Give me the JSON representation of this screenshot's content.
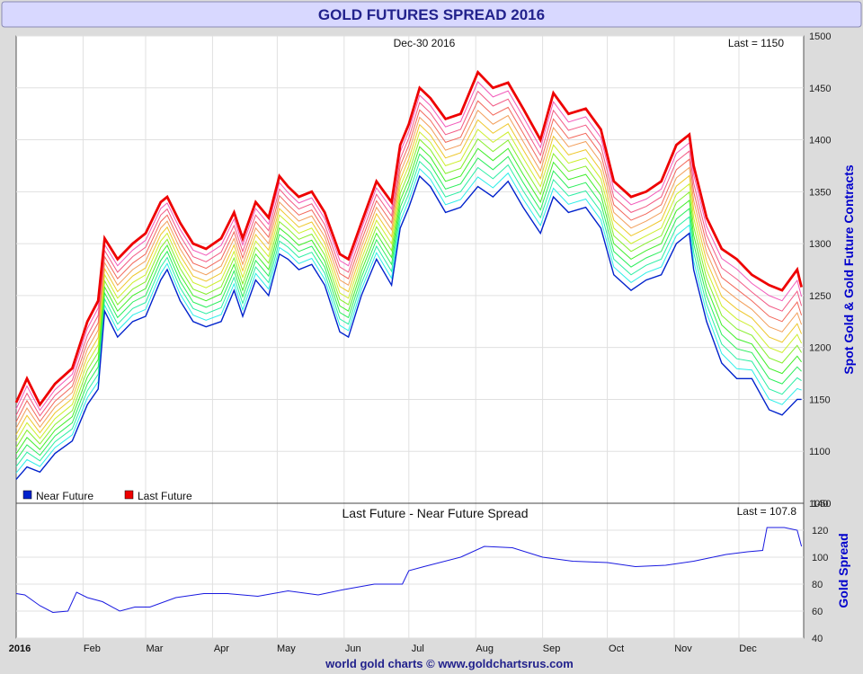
{
  "title": "GOLD FUTURES SPREAD 2016",
  "footer": "world gold charts © www.goldchartsrus.com",
  "colors": {
    "title_bg": "#d8d8ff",
    "title_text": "#22228c",
    "frame": "#8a8ab4",
    "axis_label": "#0000cc",
    "near": "#0022cc",
    "last": "#ee0000",
    "spread_line": "#1a1ae0",
    "grid": "#e0e0e0"
  },
  "chart_data": [
    {
      "type": "line",
      "date_label": "Dec-30  2016",
      "last_label": "Last = 1150",
      "ylabel": "Spot Gold & Gold Future Contracts",
      "ylim": [
        1050,
        1500
      ],
      "yticks": [
        1050,
        1100,
        1150,
        1200,
        1250,
        1300,
        1350,
        1400,
        1450,
        1500
      ],
      "grid": true,
      "legend": [
        {
          "label": "Near Future",
          "color": "#0022cc"
        },
        {
          "label": "Last Future",
          "color": "#ee0000"
        }
      ],
      "legend_position": "bottom-left",
      "contracts": 13,
      "x_months": [
        "2016",
        "Feb",
        "Mar",
        "Apr",
        "May",
        "Jun",
        "Jul",
        "Aug",
        "Sep",
        "Oct",
        "Nov",
        "Dec"
      ],
      "series": [
        {
          "name": "Near Future",
          "x": [
            "2016-01-01",
            "2016-01-06",
            "2016-01-12",
            "2016-01-19",
            "2016-01-27",
            "2016-02-03",
            "2016-02-08",
            "2016-02-11",
            "2016-02-17",
            "2016-02-24",
            "2016-03-01",
            "2016-03-08",
            "2016-03-11",
            "2016-03-17",
            "2016-03-23",
            "2016-03-29",
            "2016-04-05",
            "2016-04-11",
            "2016-04-15",
            "2016-04-21",
            "2016-04-27",
            "2016-05-02",
            "2016-05-06",
            "2016-05-11",
            "2016-05-17",
            "2016-05-23",
            "2016-05-30",
            "2016-06-03",
            "2016-06-09",
            "2016-06-16",
            "2016-06-23",
            "2016-06-27",
            "2016-07-01",
            "2016-07-06",
            "2016-07-11",
            "2016-07-18",
            "2016-07-25",
            "2016-08-02",
            "2016-08-09",
            "2016-08-16",
            "2016-08-23",
            "2016-08-31",
            "2016-09-06",
            "2016-09-13",
            "2016-09-21",
            "2016-09-28",
            "2016-10-04",
            "2016-10-12",
            "2016-10-19",
            "2016-10-26",
            "2016-11-02",
            "2016-11-08",
            "2016-11-10",
            "2016-11-16",
            "2016-11-23",
            "2016-11-30",
            "2016-12-07",
            "2016-12-15",
            "2016-12-21",
            "2016-12-28",
            "2016-12-30"
          ],
          "y": [
            1073,
            1085,
            1080,
            1098,
            1110,
            1145,
            1160,
            1235,
            1210,
            1225,
            1230,
            1265,
            1275,
            1245,
            1225,
            1220,
            1225,
            1255,
            1230,
            1265,
            1250,
            1290,
            1285,
            1275,
            1280,
            1260,
            1215,
            1210,
            1250,
            1285,
            1260,
            1315,
            1335,
            1365,
            1355,
            1330,
            1335,
            1355,
            1345,
            1360,
            1335,
            1310,
            1345,
            1330,
            1335,
            1315,
            1270,
            1255,
            1265,
            1270,
            1300,
            1310,
            1275,
            1225,
            1185,
            1170,
            1170,
            1140,
            1135,
            1150,
            1150
          ]
        },
        {
          "name": "Last Future",
          "x": [
            "2016-01-01",
            "2016-01-06",
            "2016-01-12",
            "2016-01-19",
            "2016-01-27",
            "2016-02-03",
            "2016-02-08",
            "2016-02-11",
            "2016-02-17",
            "2016-02-24",
            "2016-03-01",
            "2016-03-08",
            "2016-03-11",
            "2016-03-17",
            "2016-03-23",
            "2016-03-29",
            "2016-04-05",
            "2016-04-11",
            "2016-04-15",
            "2016-04-21",
            "2016-04-27",
            "2016-05-02",
            "2016-05-06",
            "2016-05-11",
            "2016-05-17",
            "2016-05-23",
            "2016-05-30",
            "2016-06-03",
            "2016-06-09",
            "2016-06-16",
            "2016-06-23",
            "2016-06-27",
            "2016-07-01",
            "2016-07-06",
            "2016-07-11",
            "2016-07-18",
            "2016-07-25",
            "2016-08-02",
            "2016-08-09",
            "2016-08-16",
            "2016-08-23",
            "2016-08-31",
            "2016-09-06",
            "2016-09-13",
            "2016-09-21",
            "2016-09-28",
            "2016-10-04",
            "2016-10-12",
            "2016-10-19",
            "2016-10-26",
            "2016-11-02",
            "2016-11-08",
            "2016-11-10",
            "2016-11-16",
            "2016-11-23",
            "2016-11-30",
            "2016-12-07",
            "2016-12-15",
            "2016-12-21",
            "2016-12-28",
            "2016-12-30"
          ],
          "y": [
            1147,
            1170,
            1145,
            1165,
            1180,
            1225,
            1245,
            1305,
            1285,
            1300,
            1310,
            1340,
            1345,
            1320,
            1300,
            1295,
            1305,
            1330,
            1305,
            1340,
            1325,
            1365,
            1355,
            1345,
            1350,
            1330,
            1290,
            1285,
            1320,
            1360,
            1340,
            1395,
            1415,
            1450,
            1440,
            1420,
            1425,
            1465,
            1450,
            1455,
            1430,
            1400,
            1445,
            1425,
            1430,
            1410,
            1360,
            1345,
            1350,
            1360,
            1395,
            1405,
            1375,
            1325,
            1295,
            1285,
            1270,
            1260,
            1255,
            1275,
            1258
          ]
        }
      ]
    },
    {
      "type": "line",
      "title": "Last Future - Near Future Spread",
      "last_label": "Last = 107.8",
      "ylabel": "Gold Spread",
      "ylim": [
        40,
        140
      ],
      "yticks": [
        40,
        60,
        80,
        100,
        120,
        140
      ],
      "grid": true,
      "series": [
        {
          "name": "Gold Spread",
          "x": [
            "2016-01-01",
            "2016-01-05",
            "2016-01-12",
            "2016-01-18",
            "2016-01-25",
            "2016-01-29",
            "2016-02-03",
            "2016-02-10",
            "2016-02-18",
            "2016-02-25",
            "2016-03-03",
            "2016-03-15",
            "2016-03-28",
            "2016-04-08",
            "2016-04-22",
            "2016-05-06",
            "2016-05-20",
            "2016-06-01",
            "2016-06-15",
            "2016-06-28",
            "2016-07-01",
            "2016-07-08",
            "2016-07-25",
            "2016-08-05",
            "2016-08-18",
            "2016-09-01",
            "2016-09-15",
            "2016-10-01",
            "2016-10-14",
            "2016-10-28",
            "2016-11-10",
            "2016-11-25",
            "2016-12-05",
            "2016-12-12",
            "2016-12-14",
            "2016-12-22",
            "2016-12-28",
            "2016-12-30"
          ],
          "y": [
            73,
            72,
            64,
            59,
            60,
            74,
            70,
            67,
            60,
            63,
            63,
            70,
            73,
            73,
            71,
            75,
            72,
            76,
            80,
            80,
            90,
            93,
            100,
            108,
            107,
            100,
            97,
            96,
            93,
            94,
            97,
            102,
            104,
            105,
            122,
            122,
            120,
            108
          ]
        }
      ]
    }
  ]
}
